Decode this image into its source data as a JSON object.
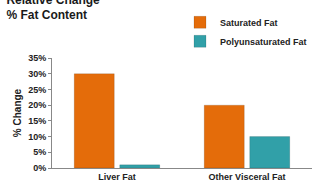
{
  "chart_data": {
    "type": "bar",
    "title": "Relative Change\n% Fat Content",
    "categories": [
      "Liver Fat",
      "Other Visceral Fat"
    ],
    "series": [
      {
        "name": "Saturated Fat",
        "color": "#E46C0A",
        "values": [
          30,
          20
        ]
      },
      {
        "name": "Polyunsaturated Fat",
        "color": "#31A0A8",
        "values": [
          1,
          10
        ]
      }
    ],
    "y_label": "% Change",
    "ylim": [
      0,
      35
    ],
    "yticks": [
      {
        "value": 0,
        "label": "0%"
      },
      {
        "value": 5,
        "label": "5%"
      },
      {
        "value": 10,
        "label": "10%"
      },
      {
        "value": 15,
        "label": "15%"
      },
      {
        "value": 20,
        "label": "20%"
      },
      {
        "value": 25,
        "label": "25%"
      },
      {
        "value": 30,
        "label": "30%"
      },
      {
        "value": 35,
        "label": "35%"
      }
    ],
    "grid": false,
    "legend": "upper right"
  }
}
